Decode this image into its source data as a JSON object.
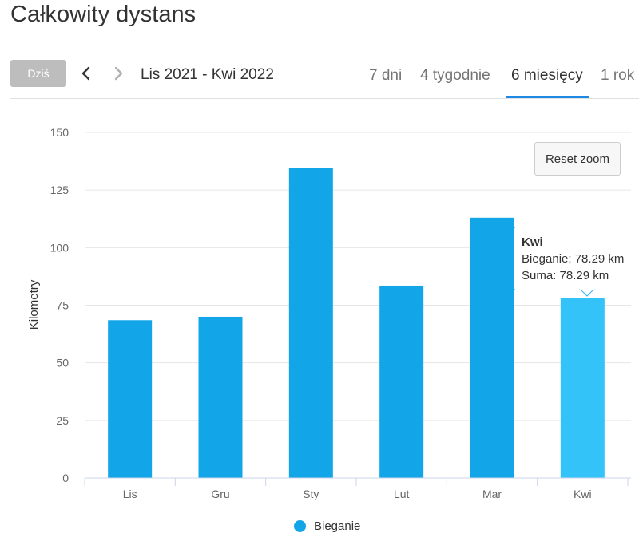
{
  "page": {
    "title": "Całkowity dystans"
  },
  "toolbar": {
    "today_label": "Dziś",
    "range_label": "Lis 2021 - Kwi 2022",
    "prev_icon": "chevron-left-icon",
    "next_icon": "chevron-right-icon",
    "tabs": [
      {
        "label": "7 dni",
        "active": false
      },
      {
        "label": "4 tygodnie",
        "active": false
      },
      {
        "label": "6 miesięcy",
        "active": true
      },
      {
        "label": "1 rok",
        "active": false
      }
    ]
  },
  "reset_zoom_label": "Reset zoom",
  "tooltip": {
    "title": "Kwi",
    "line1": "Bieganie: 78.29 km",
    "line2": "Suma: 78.29 km"
  },
  "colors": {
    "bar": "#12a6e8",
    "bar_highlight": "#33c3f8",
    "accent": "#1e88e5",
    "grid": "#e6e6e6"
  },
  "chart_data": {
    "type": "bar",
    "title": "",
    "xlabel": "",
    "ylabel": "Kilometry",
    "categories": [
      "Lis",
      "Gru",
      "Sty",
      "Lut",
      "Mar",
      "Kwi"
    ],
    "series": [
      {
        "name": "Bieganie",
        "values": [
          68.5,
          70,
          134.5,
          83.5,
          113,
          78.29
        ]
      }
    ],
    "ylim": [
      0,
      150
    ],
    "yticks": [
      0,
      25,
      50,
      75,
      100,
      125,
      150
    ],
    "highlighted_category": "Kwi",
    "grid": true,
    "legend": "bottom"
  }
}
